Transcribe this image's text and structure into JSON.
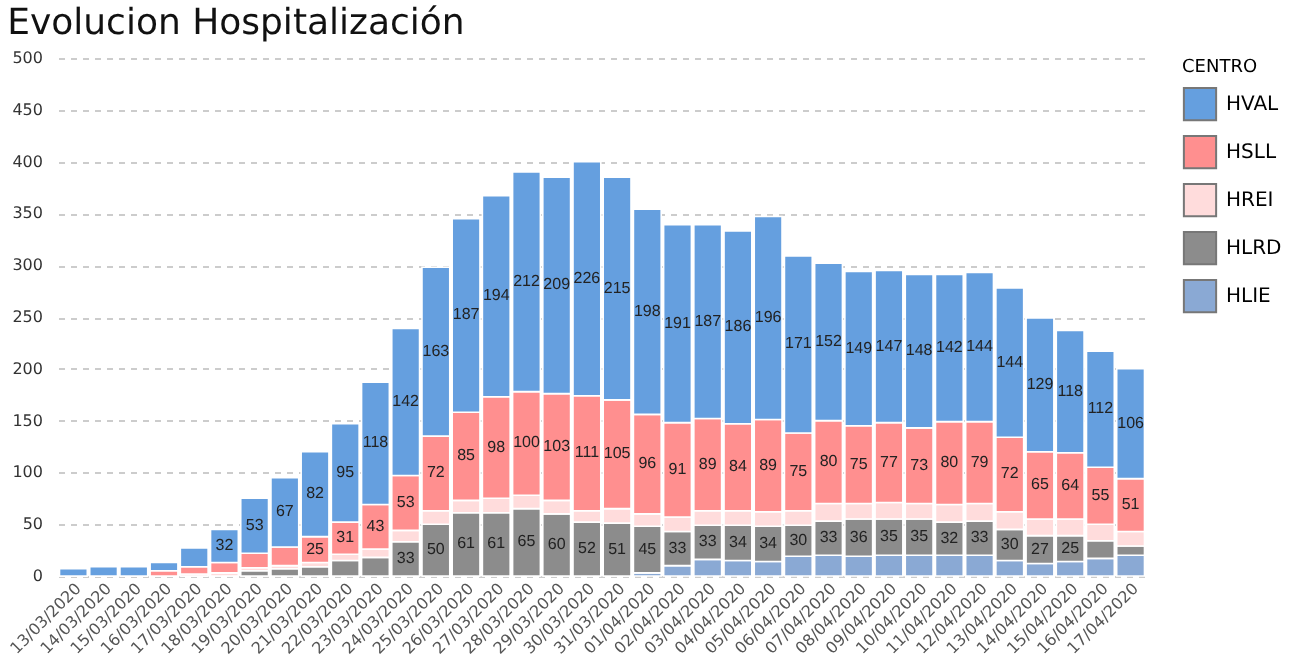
{
  "chart_data": {
    "type": "bar",
    "title": "Evolucion Hospitalización",
    "legend_title": "CENTRO",
    "stacked": true,
    "legend": "top right",
    "grid": "y",
    "categories": [
      "13/03/2020",
      "14/03/2020",
      "15/03/2020",
      "16/03/2020",
      "17/03/2020",
      "18/03/2020",
      "19/03/2020",
      "20/03/2020",
      "21/03/2020",
      "22/03/2020",
      "23/03/2020",
      "24/03/2020",
      "25/03/2020",
      "26/03/2020",
      "27/03/2020",
      "28/03/2020",
      "29/03/2020",
      "30/03/2020",
      "31/03/2020",
      "01/04/2020",
      "02/04/2020",
      "03/04/2020",
      "04/04/2020",
      "05/04/2020",
      "06/04/2020",
      "07/04/2020",
      "08/04/2020",
      "09/04/2020",
      "10/04/2020",
      "11/04/2020",
      "12/04/2020",
      "13/04/2020",
      "14/04/2020",
      "15/04/2020",
      "16/04/2020",
      "17/04/2020"
    ],
    "ylim": [
      0,
      500
    ],
    "yticks": [
      0,
      50,
      100,
      150,
      200,
      250,
      300,
      350,
      400,
      450,
      500
    ],
    "series": [
      {
        "name": "HLIE",
        "color": "#8aa9d4",
        "values": [
          0,
          0,
          0,
          0,
          0,
          0,
          0,
          0,
          0,
          0,
          0,
          0,
          0,
          0,
          0,
          0,
          0,
          0,
          0,
          3,
          10,
          16,
          15,
          14,
          19,
          20,
          19,
          20,
          20,
          20,
          20,
          15,
          12,
          14,
          17,
          20
        ]
      },
      {
        "name": "HLRD",
        "color": "#8c8c8c",
        "values": [
          0,
          0,
          0,
          0,
          0,
          null,
          5,
          7,
          9,
          15,
          18,
          33,
          50,
          61,
          61,
          65,
          60,
          52,
          51,
          45,
          33,
          33,
          34,
          34,
          30,
          33,
          36,
          35,
          35,
          32,
          33,
          30,
          27,
          25,
          17,
          9
        ],
        "value_labels": [
          null,
          null,
          null,
          null,
          null,
          null,
          null,
          null,
          null,
          null,
          null,
          "33",
          "50",
          "61",
          "61",
          "65",
          "60",
          "52",
          "51",
          "45",
          "33",
          "33",
          "34",
          "34",
          "30",
          "33",
          "36",
          "35",
          "35",
          "32",
          "33",
          "30",
          "27",
          "25",
          null,
          null
        ]
      },
      {
        "name": "HREI",
        "color": "#ffdcdc",
        "values": [
          0,
          0,
          0,
          0,
          2,
          3,
          3,
          3,
          4,
          6,
          8,
          11,
          13,
          12,
          14,
          13,
          13,
          11,
          14,
          12,
          14,
          14,
          14,
          14,
          14,
          17,
          15,
          16,
          15,
          17,
          17,
          17,
          16,
          16,
          16,
          14
        ]
      },
      {
        "name": "HSLL",
        "color": "#ff8f8f",
        "values": [
          0,
          0,
          0,
          5,
          7,
          10,
          14,
          18,
          25,
          31,
          43,
          53,
          72,
          85,
          98,
          100,
          103,
          111,
          105,
          96,
          91,
          89,
          84,
          89,
          75,
          80,
          75,
          77,
          73,
          80,
          79,
          72,
          65,
          64,
          55,
          51
        ],
        "value_labels": [
          null,
          null,
          null,
          null,
          null,
          null,
          null,
          null,
          "25",
          "31",
          "43",
          "53",
          "72",
          "85",
          "98",
          "100",
          "103",
          "111",
          "105",
          "96",
          "91",
          "89",
          "84",
          "89",
          "75",
          "80",
          "75",
          "77",
          "73",
          "80",
          "79",
          "72",
          "65",
          "64",
          "55",
          "51"
        ]
      },
      {
        "name": "HVAL",
        "color": "#659fdf",
        "values": [
          7,
          9,
          9,
          8,
          18,
          32,
          53,
          67,
          82,
          95,
          118,
          142,
          163,
          187,
          194,
          212,
          209,
          226,
          215,
          198,
          191,
          187,
          186,
          196,
          171,
          152,
          149,
          147,
          148,
          142,
          144,
          144,
          129,
          118,
          112,
          106
        ],
        "value_labels": [
          null,
          null,
          null,
          null,
          null,
          "32",
          "53",
          "67",
          "82",
          "95",
          "118",
          "142",
          "163",
          "187",
          "194",
          "212",
          "209",
          "226",
          "215",
          "198",
          "191",
          "187",
          "186",
          "196",
          "171",
          "152",
          "149",
          "147",
          "148",
          "142",
          "144",
          "144",
          "129",
          "118",
          "112",
          "106"
        ]
      }
    ]
  }
}
